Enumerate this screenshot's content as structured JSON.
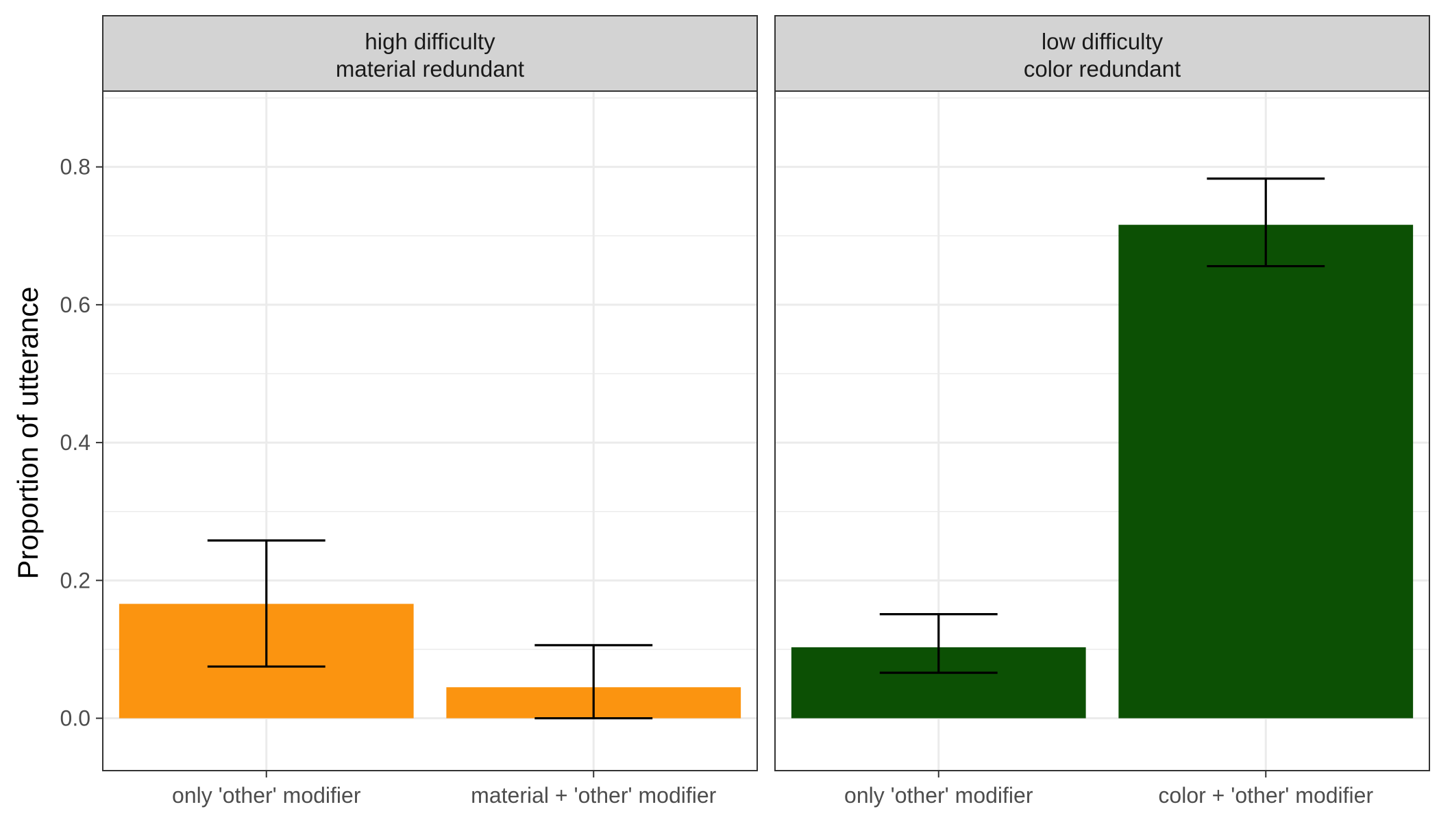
{
  "chart_data": {
    "type": "bar",
    "ylabel": "Proportion of utterance",
    "xlabel": "",
    "ylim": [
      -0.076,
      0.91
    ],
    "yticks": [
      0.0,
      0.2,
      0.4,
      0.6,
      0.8
    ],
    "ytick_labels": [
      "0.0",
      "0.2",
      "0.4",
      "0.6",
      "0.8"
    ],
    "grid": true,
    "legend": "none",
    "panels": [
      {
        "strip": [
          "high difficulty",
          "material redundant"
        ],
        "color": "#fb9410",
        "categories": [
          "only 'other' modifier",
          "material + 'other' modifier"
        ],
        "values": [
          0.166,
          0.045
        ],
        "error_low": [
          0.075,
          0.0
        ],
        "error_high": [
          0.258,
          0.106
        ]
      },
      {
        "strip": [
          "low difficulty",
          "color redundant"
        ],
        "color": "#0c5004",
        "categories": [
          "only 'other' modifier",
          "color + 'other' modifier"
        ],
        "values": [
          0.103,
          0.716
        ],
        "error_low": [
          0.066,
          0.656
        ],
        "error_high": [
          0.151,
          0.783
        ]
      }
    ]
  }
}
